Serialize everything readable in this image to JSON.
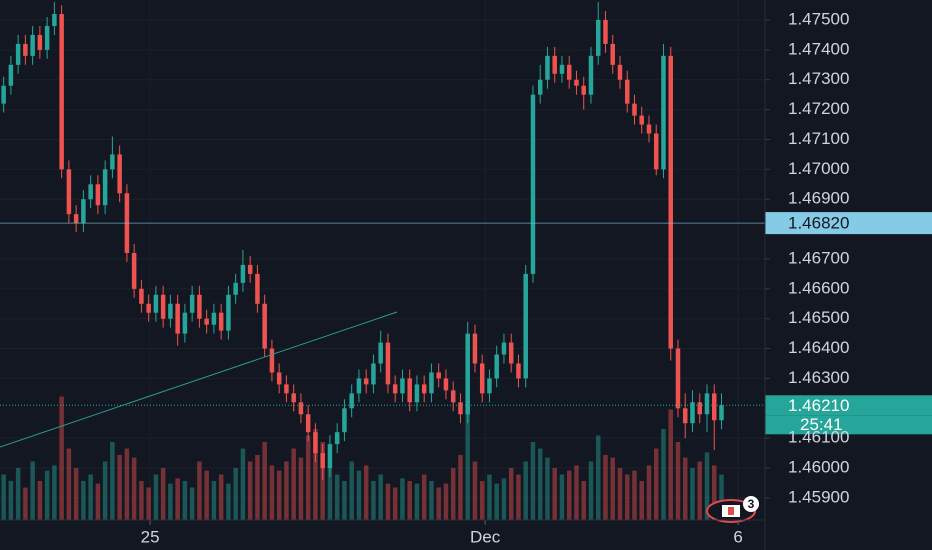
{
  "chart_data": {
    "type": "candlestick",
    "up_color": "#26a69a",
    "down_color": "#ef5350",
    "grid": true,
    "xlim": [
      -0.5,
      105
    ],
    "xticks": [
      {
        "value": 20.2,
        "label": "25"
      },
      {
        "value": 66.4,
        "label": "Dec"
      },
      {
        "value": 101.3,
        "label": "6"
      }
    ],
    "ylim": [
      1.45826,
      1.47567
    ],
    "yticks": [
      {
        "value": 1.475,
        "label": "1.47500"
      },
      {
        "value": 1.474,
        "label": "1.47400"
      },
      {
        "value": 1.473,
        "label": "1.47300"
      },
      {
        "value": 1.472,
        "label": "1.47200"
      },
      {
        "value": 1.471,
        "label": "1.47100"
      },
      {
        "value": 1.47,
        "label": "1.47000"
      },
      {
        "value": 1.469,
        "label": "1.46900"
      },
      {
        "value": 1.467,
        "label": "1.46700"
      },
      {
        "value": 1.466,
        "label": "1.46600"
      },
      {
        "value": 1.465,
        "label": "1.46500"
      },
      {
        "value": 1.464,
        "label": "1.46400"
      },
      {
        "value": 1.463,
        "label": "1.46300"
      },
      {
        "value": 1.461,
        "label": "1.46100"
      },
      {
        "value": 1.46,
        "label": "1.46000"
      },
      {
        "value": 1.459,
        "label": "1.45900"
      }
    ],
    "crosshair": {
      "value": 1.4682,
      "label": "1.46820"
    },
    "last_price": {
      "value": 1.4621,
      "label": "1.46210",
      "countdown": "25:41"
    },
    "badge": "3",
    "open": [
      1.4722,
      1.4728,
      1.4735,
      1.4742,
      1.4738,
      1.4745,
      1.474,
      1.4748,
      1.4752,
      1.47,
      1.4685,
      1.4682,
      1.469,
      1.4695,
      1.4688,
      1.47,
      1.4705,
      1.4692,
      1.4672,
      1.466,
      1.4655,
      1.4652,
      1.4658,
      1.465,
      1.4655,
      1.4645,
      1.4652,
      1.4658,
      1.465,
      1.4648,
      1.4652,
      1.4646,
      1.4658,
      1.4662,
      1.4668,
      1.4665,
      1.4655,
      1.464,
      1.4632,
      1.4628,
      1.4625,
      1.4622,
      1.4618,
      1.4612,
      1.4605,
      1.46,
      1.4608,
      1.4612,
      1.462,
      1.4625,
      1.463,
      1.4628,
      1.4635,
      1.4642,
      1.4628,
      1.4625,
      1.463,
      1.4622,
      1.4628,
      1.4625,
      1.4632,
      1.463,
      1.4626,
      1.4622,
      1.4618,
      1.4645,
      1.4635,
      1.4625,
      1.463,
      1.4638,
      1.4642,
      1.4635,
      1.463,
      1.4665,
      1.4725,
      1.473,
      1.4738,
      1.4732,
      1.4735,
      1.473,
      1.4728,
      1.4725,
      1.4738,
      1.475,
      1.4742,
      1.4735,
      1.473,
      1.4722,
      1.4718,
      1.4715,
      1.4712,
      1.47,
      1.4738,
      1.464,
      1.462,
      1.4615,
      1.4622,
      1.4618,
      1.4625,
      1.4616
    ],
    "high": [
      1.4731,
      1.4738,
      1.4745,
      1.4745,
      1.4748,
      1.4748,
      1.4751,
      1.4756,
      1.4755,
      1.4703,
      1.4688,
      1.4693,
      1.4698,
      1.4698,
      1.4703,
      1.4711,
      1.4708,
      1.4695,
      1.4675,
      1.4663,
      1.4658,
      1.4661,
      1.4661,
      1.4658,
      1.4658,
      1.4655,
      1.4661,
      1.4661,
      1.4653,
      1.4655,
      1.4655,
      1.4661,
      1.4665,
      1.4673,
      1.4671,
      1.4668,
      1.4658,
      1.4643,
      1.4635,
      1.4631,
      1.4628,
      1.4625,
      1.4621,
      1.4615,
      1.4608,
      1.4611,
      1.4615,
      1.4623,
      1.4628,
      1.4633,
      1.4633,
      1.4638,
      1.4646,
      1.4645,
      1.4631,
      1.4633,
      1.4633,
      1.4631,
      1.4631,
      1.4635,
      1.4635,
      1.4633,
      1.4629,
      1.4625,
      1.4649,
      1.4648,
      1.4638,
      1.4633,
      1.4641,
      1.4645,
      1.4645,
      1.4638,
      1.4668,
      1.4728,
      1.4735,
      1.4741,
      1.4741,
      1.4738,
      1.4738,
      1.4733,
      1.4731,
      1.4741,
      1.4756,
      1.4753,
      1.4745,
      1.4738,
      1.4733,
      1.4725,
      1.4721,
      1.4718,
      1.4715,
      1.4742,
      1.4741,
      1.4643,
      1.4625,
      1.4626,
      1.4625,
      1.4628,
      1.4628,
      1.4625
    ],
    "low": [
      1.4719,
      1.4725,
      1.4732,
      1.4735,
      1.4735,
      1.4737,
      1.4737,
      1.4745,
      1.4697,
      1.4682,
      1.4679,
      1.4679,
      1.4687,
      1.4685,
      1.4685,
      1.4697,
      1.4689,
      1.4669,
      1.4657,
      1.4652,
      1.4649,
      1.4649,
      1.4647,
      1.4647,
      1.4641,
      1.4642,
      1.4649,
      1.4647,
      1.4645,
      1.4645,
      1.4643,
      1.4643,
      1.4655,
      1.4659,
      1.4662,
      1.4652,
      1.4637,
      1.4629,
      1.4625,
      1.4622,
      1.4619,
      1.4615,
      1.4609,
      1.4602,
      1.4596,
      1.4597,
      1.4605,
      1.4609,
      1.4617,
      1.4622,
      1.4625,
      1.4625,
      1.4632,
      1.4625,
      1.4622,
      1.4622,
      1.4619,
      1.4619,
      1.4622,
      1.4622,
      1.4627,
      1.4623,
      1.4619,
      1.4615,
      1.4615,
      1.4632,
      1.4622,
      1.4622,
      1.4627,
      1.4635,
      1.4632,
      1.4627,
      1.4627,
      1.4662,
      1.4722,
      1.4727,
      1.4729,
      1.4729,
      1.4727,
      1.4725,
      1.472,
      1.4722,
      1.4735,
      1.4739,
      1.4732,
      1.4727,
      1.4719,
      1.4715,
      1.4712,
      1.4709,
      1.4698,
      1.4697,
      1.4636,
      1.4617,
      1.461,
      1.4612,
      1.4615,
      1.4612,
      1.4606,
      1.4613
    ],
    "close": [
      1.4728,
      1.4735,
      1.4742,
      1.4738,
      1.4745,
      1.474,
      1.4748,
      1.4752,
      1.47,
      1.4685,
      1.4682,
      1.469,
      1.4695,
      1.4688,
      1.47,
      1.4705,
      1.4692,
      1.4672,
      1.466,
      1.4655,
      1.4652,
      1.4658,
      1.465,
      1.4655,
      1.4645,
      1.4652,
      1.4658,
      1.465,
      1.4648,
      1.4652,
      1.4646,
      1.4658,
      1.4662,
      1.4668,
      1.4665,
      1.4655,
      1.464,
      1.4632,
      1.4628,
      1.4625,
      1.4622,
      1.4618,
      1.4612,
      1.4605,
      1.46,
      1.4608,
      1.4612,
      1.462,
      1.4625,
      1.463,
      1.4628,
      1.4635,
      1.4642,
      1.4628,
      1.4625,
      1.463,
      1.4622,
      1.4628,
      1.4625,
      1.4632,
      1.463,
      1.4626,
      1.4622,
      1.4618,
      1.4645,
      1.4635,
      1.4625,
      1.463,
      1.4638,
      1.4642,
      1.4635,
      1.463,
      1.4665,
      1.4725,
      1.473,
      1.4738,
      1.4732,
      1.4735,
      1.473,
      1.4728,
      1.4725,
      1.4738,
      1.475,
      1.4742,
      1.4735,
      1.473,
      1.4722,
      1.4718,
      1.4715,
      1.4712,
      1.47,
      1.4738,
      1.464,
      1.462,
      1.4615,
      1.4622,
      1.4618,
      1.4625,
      1.4616,
      1.4621
    ],
    "volume": [
      35,
      30,
      40,
      25,
      45,
      30,
      38,
      42,
      95,
      55,
      40,
      30,
      35,
      28,
      45,
      60,
      50,
      55,
      48,
      30,
      25,
      35,
      40,
      28,
      32,
      30,
      25,
      45,
      38,
      30,
      35,
      28,
      40,
      55,
      45,
      50,
      60,
      42,
      38,
      45,
      55,
      48,
      65,
      70,
      60,
      40,
      35,
      30,
      45,
      38,
      42,
      30,
      35,
      28,
      25,
      32,
      30,
      28,
      35,
      30,
      25,
      28,
      40,
      50,
      90,
      45,
      30,
      35,
      28,
      32,
      40,
      35,
      45,
      60,
      55,
      48,
      40,
      35,
      38,
      42,
      30,
      45,
      65,
      50,
      48,
      40,
      35,
      38,
      30,
      42,
      55,
      70,
      85,
      60,
      48,
      40,
      45,
      52,
      42,
      35
    ]
  }
}
